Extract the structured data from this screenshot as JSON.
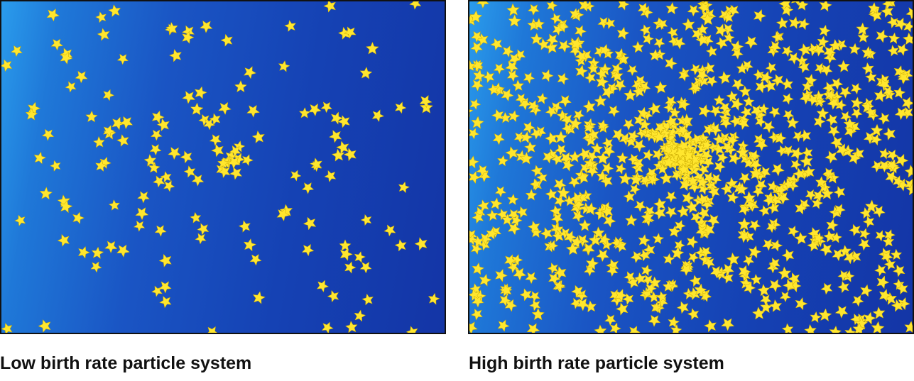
{
  "figures": [
    {
      "caption": "Low birth rate particle system",
      "birth_rate": "low",
      "particle_icon": "star-icon",
      "particle_color": "#ffe62e"
    },
    {
      "caption": "High birth rate particle system",
      "birth_rate": "high",
      "particle_icon": "star-icon",
      "particle_color": "#ffe62e"
    }
  ]
}
